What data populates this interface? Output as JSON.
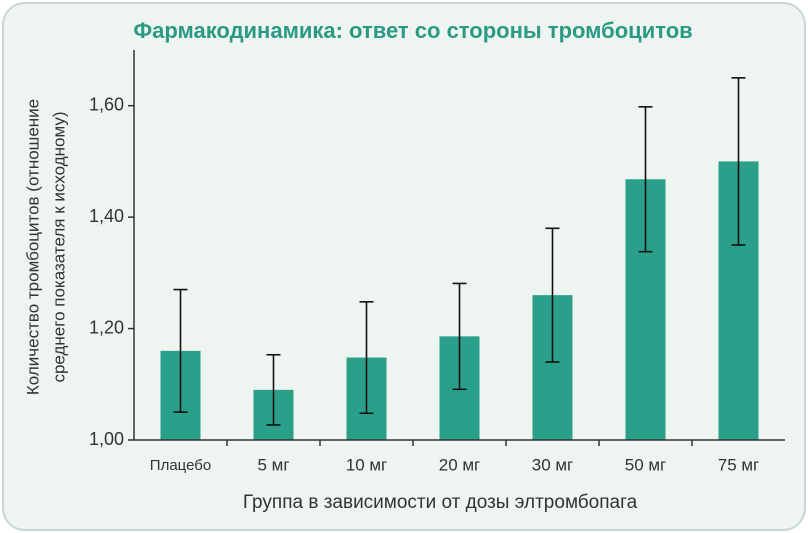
{
  "chart_data": {
    "type": "bar",
    "title": "Фармакодинамика: ответ со стороны тромбоцитов",
    "y_label": [
      "Количество тромбоцитов (отношение",
      "среднего показателя к исходному)"
    ],
    "x_label": "Группа в зависимости от дозы элтромбопага",
    "categories": [
      "Плацебо",
      "5 мг",
      "10 мг",
      "20 мг",
      "30 мг",
      "50 мг",
      "75 мг"
    ],
    "values": [
      1.16,
      1.09,
      1.148,
      1.186,
      1.26,
      1.468,
      1.5
    ],
    "errors": [
      0.11,
      0.063,
      0.1,
      0.095,
      0.12,
      0.13,
      0.15
    ],
    "color": "#2aa08a",
    "ylim": [
      1.0,
      1.7
    ],
    "yticks": [
      {
        "value": 1.0,
        "label": "1,00"
      },
      {
        "value": 1.2,
        "label": "1,20"
      },
      {
        "value": 1.4,
        "label": "1,40"
      },
      {
        "value": 1.6,
        "label": "1,60"
      }
    ],
    "grid": false
  }
}
